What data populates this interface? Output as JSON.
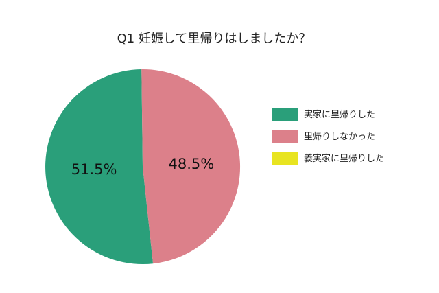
{
  "chart_data": {
    "type": "pie",
    "title": "Q1 妊娠して里帰りはしましたか？",
    "slices": [
      {
        "label": "実家に里帰りした",
        "value": 51.5,
        "display": "51.5%",
        "color": "#2a9f7a"
      },
      {
        "label": "里帰りしなかった",
        "value": 48.5,
        "display": "48.5%",
        "color": "#dc808a"
      },
      {
        "label": "義実家に里帰りした",
        "value": 0,
        "display": "",
        "color": "#e8e421"
      }
    ],
    "legend_position": "right"
  }
}
